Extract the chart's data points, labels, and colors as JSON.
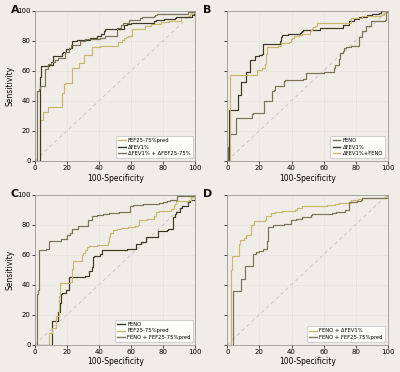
{
  "bg_color": "#f0ede8",
  "plot_bg": "#f0ede8",
  "grid_color": "#cccccc",
  "diag_color": "#aaaaaa",
  "xlabel": "100-Specificity",
  "ylabel": "Sensitivity",
  "xlim": [
    0,
    100
  ],
  "ylim": [
    0,
    100
  ],
  "xticks": [
    0,
    20,
    40,
    60,
    80,
    100
  ],
  "yticks": [
    0,
    20,
    40,
    60,
    80,
    100
  ],
  "colors": {
    "yellow": "#c8b86e",
    "dark": "#3a3820",
    "medium": "#7a7255"
  },
  "subplots": [
    {
      "label": "A",
      "legend": [
        {
          "text": "FEF25-75%pred",
          "color": "#c8b86e"
        },
        {
          "text": "ΔFEV1%",
          "color": "#3a3820"
        },
        {
          "text": "ΔFEV1% + ΔFEF25-75%",
          "color": "#7a7255"
        }
      ],
      "curves": [
        {
          "seed": 101,
          "auc": 0.74,
          "color": "#c8b86e"
        },
        {
          "seed": 202,
          "auc": 0.87,
          "color": "#3a3820"
        },
        {
          "seed": 303,
          "auc": 0.85,
          "color": "#7a7255"
        }
      ]
    },
    {
      "label": "B",
      "legend": [
        {
          "text": "FENO",
          "color": "#7a7255"
        },
        {
          "text": "ΔFEV1%",
          "color": "#3a3820"
        },
        {
          "text": "ΔFEV1%+FENO",
          "color": "#c8b86e"
        }
      ],
      "curves": [
        {
          "seed": 404,
          "auc": 0.68,
          "color": "#7a7255"
        },
        {
          "seed": 505,
          "auc": 0.86,
          "color": "#3a3820"
        },
        {
          "seed": 606,
          "auc": 0.88,
          "color": "#c8b86e"
        }
      ]
    },
    {
      "label": "C",
      "legend": [
        {
          "text": "FENO",
          "color": "#3a3820"
        },
        {
          "text": "FEF25-75%pred",
          "color": "#c8b86e"
        },
        {
          "text": "FENO + FEF25-75%pred",
          "color": "#7a7255"
        }
      ],
      "curves": [
        {
          "seed": 707,
          "auc": 0.7,
          "color": "#3a3820"
        },
        {
          "seed": 808,
          "auc": 0.73,
          "color": "#c8b86e"
        },
        {
          "seed": 909,
          "auc": 0.82,
          "color": "#7a7255"
        }
      ]
    },
    {
      "label": "D",
      "legend": [
        {
          "text": "FENO + ΔFEV1%",
          "color": "#c8b86e"
        },
        {
          "text": "FENO + FEF25-75%pred",
          "color": "#7a7255"
        }
      ],
      "curves": [
        {
          "seed": 111,
          "auc": 0.88,
          "color": "#c8b86e"
        },
        {
          "seed": 222,
          "auc": 0.86,
          "color": "#7a7255"
        }
      ]
    }
  ]
}
